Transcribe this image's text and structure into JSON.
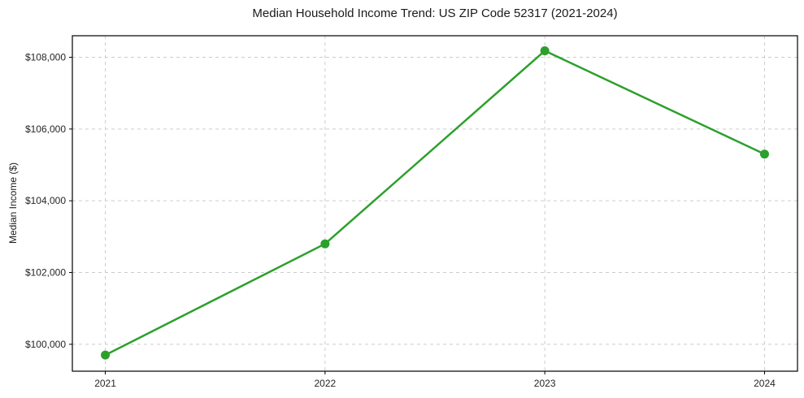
{
  "chart_data": {
    "type": "line",
    "title": "Median Household Income Trend: US ZIP Code 52317 (2021-2024)",
    "xlabel": "",
    "ylabel": "Median Income ($)",
    "x": [
      2021,
      2022,
      2023,
      2024
    ],
    "values": [
      99700,
      102800,
      108180,
      105300
    ],
    "series_name": "Median Household Income",
    "xticks": [
      {
        "value": 2021,
        "label": "2021"
      },
      {
        "value": 2022,
        "label": "2022"
      },
      {
        "value": 2023,
        "label": "2023"
      },
      {
        "value": 2024,
        "label": "2024"
      }
    ],
    "yticks": [
      {
        "value": 100000,
        "label": "$100,000"
      },
      {
        "value": 102000,
        "label": "$102,000"
      },
      {
        "value": 104000,
        "label": "$104,000"
      },
      {
        "value": 106000,
        "label": "$106,000"
      },
      {
        "value": 108000,
        "label": "$108,000"
      }
    ],
    "xlim": [
      2020.85,
      2024.15
    ],
    "ylim": [
      99250,
      108600
    ],
    "grid": true,
    "grid_style": "dashed",
    "legend": "none",
    "marker": "circle",
    "colors": {
      "line": "#2ca02c",
      "marker": "#2ca02c",
      "grid": "#cccccc",
      "frame": "#000000",
      "text": "#262626",
      "background": "#ffffff"
    }
  }
}
